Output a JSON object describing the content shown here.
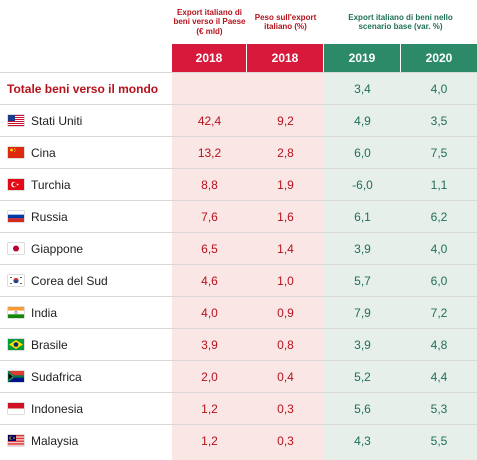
{
  "headers": {
    "export_2018": "Export italiano di beni verso il Paese (€ mld)",
    "peso_2018": "Peso sull'export italiano (%)",
    "scenario": "Export italiano di beni nello scenario base (var. %)"
  },
  "years": [
    "2018",
    "2018",
    "2019",
    "2020"
  ],
  "total": {
    "label": "Totale beni verso il mondo",
    "v2019": "3,4",
    "v2020": "4,0"
  },
  "rows": [
    {
      "country": "Stati Uniti",
      "flag": "us-flag-icon",
      "export": "42,4",
      "peso": "9,2",
      "v2019": "4,9",
      "v2020": "3,5"
    },
    {
      "country": "Cina",
      "flag": "china-flag-icon",
      "export": "13,2",
      "peso": "2,8",
      "v2019": "6,0",
      "v2020": "7,5"
    },
    {
      "country": "Turchia",
      "flag": "turkey-flag-icon",
      "export": "8,8",
      "peso": "1,9",
      "v2019": "-6,0",
      "v2020": "1,1"
    },
    {
      "country": "Russia",
      "flag": "russia-flag-icon",
      "export": "7,6",
      "peso": "1,6",
      "v2019": "6,1",
      "v2020": "6,2"
    },
    {
      "country": "Giappone",
      "flag": "japan-flag-icon",
      "export": "6,5",
      "peso": "1,4",
      "v2019": "3,9",
      "v2020": "4,0"
    },
    {
      "country": "Corea del Sud",
      "flag": "south-korea-flag-icon",
      "export": "4,6",
      "peso": "1,0",
      "v2019": "5,7",
      "v2020": "6,0"
    },
    {
      "country": "India",
      "flag": "india-flag-icon",
      "export": "4,0",
      "peso": "0,9",
      "v2019": "7,9",
      "v2020": "7,2"
    },
    {
      "country": "Brasile",
      "flag": "brazil-flag-icon",
      "export": "3,9",
      "peso": "0,8",
      "v2019": "3,9",
      "v2020": "4,8"
    },
    {
      "country": "Sudafrica",
      "flag": "south-africa-flag-icon",
      "export": "2,0",
      "peso": "0,4",
      "v2019": "5,2",
      "v2020": "4,4"
    },
    {
      "country": "Indonesia",
      "flag": "indonesia-flag-icon",
      "export": "1,2",
      "peso": "0,3",
      "v2019": "5,6",
      "v2020": "5,3"
    },
    {
      "country": "Malaysia",
      "flag": "malaysia-flag-icon",
      "export": "1,2",
      "peso": "0,3",
      "v2019": "4,3",
      "v2020": "5,5"
    }
  ]
}
